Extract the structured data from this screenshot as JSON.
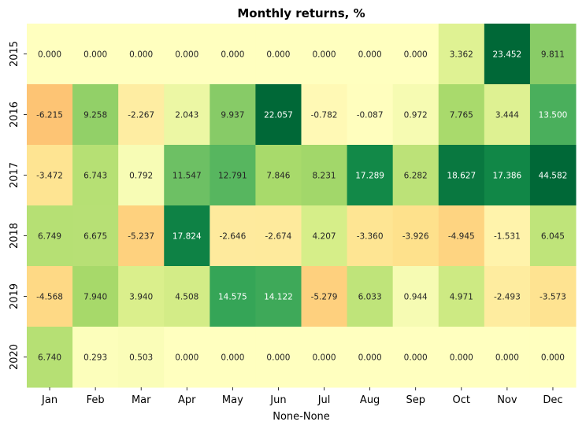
{
  "chart_data": {
    "type": "heatmap",
    "title": "Monthly returns, %",
    "xlabel": "None-None",
    "ylabel": "",
    "categories": [
      "Jan",
      "Feb",
      "Mar",
      "Apr",
      "May",
      "Jun",
      "Jul",
      "Aug",
      "Sep",
      "Oct",
      "Nov",
      "Dec"
    ],
    "rows": [
      "2015",
      "2016",
      "2017",
      "2018",
      "2019",
      "2020"
    ],
    "values": [
      [
        0.0,
        0.0,
        0.0,
        0.0,
        0.0,
        0.0,
        0.0,
        0.0,
        0.0,
        3.362,
        23.452,
        9.811
      ],
      [
        -6.215,
        9.258,
        -2.267,
        2.043,
        9.937,
        22.057,
        -0.782,
        -0.087,
        0.972,
        7.765,
        3.444,
        13.5
      ],
      [
        -3.472,
        6.743,
        0.792,
        11.547,
        12.791,
        7.846,
        8.231,
        17.289,
        6.282,
        18.627,
        17.386,
        44.582
      ],
      [
        6.749,
        6.675,
        -5.237,
        17.824,
        -2.646,
        -2.674,
        4.207,
        -3.36,
        -3.926,
        -4.945,
        -1.531,
        6.045
      ],
      [
        -4.568,
        7.94,
        3.94,
        4.508,
        14.575,
        14.122,
        -5.279,
        6.033,
        0.944,
        4.971,
        -2.493,
        -3.573
      ],
      [
        6.74,
        0.293,
        0.503,
        0.0,
        0.0,
        0.0,
        0.0,
        0.0,
        0.0,
        0.0,
        0.0,
        0.0
      ]
    ],
    "value_labels": [
      [
        "0.000",
        "0.000",
        "0.000",
        "0.000",
        "0.000",
        "0.000",
        "0.000",
        "0.000",
        "0.000",
        "3.362",
        "23.452",
        "9.811"
      ],
      [
        "-6.215",
        "9.258",
        "-2.267",
        "2.043",
        "9.937",
        "22.057",
        "-0.782",
        "-0.087",
        "0.972",
        "7.765",
        "3.444",
        "13.500"
      ],
      [
        "-3.472",
        "6.743",
        "0.792",
        "11.547",
        "12.791",
        "7.846",
        "8.231",
        "17.289",
        "6.282",
        "18.627",
        "17.386",
        "44.582"
      ],
      [
        "6.749",
        "6.675",
        "-5.237",
        "17.824",
        "-2.646",
        "-2.674",
        "4.207",
        "-3.360",
        "-3.926",
        "-4.945",
        "-1.531",
        "6.045"
      ],
      [
        "-4.568",
        "7.940",
        "3.940",
        "4.508",
        "14.575",
        "14.122",
        "-5.279",
        "6.033",
        "0.944",
        "4.971",
        "-2.493",
        "-3.573"
      ],
      [
        "6.740",
        "0.293",
        "0.503",
        "0.000",
        "0.000",
        "0.000",
        "0.000",
        "0.000",
        "0.000",
        "0.000",
        "0.000",
        "0.000"
      ]
    ],
    "colormap": "RdYlGn",
    "color_center": 0,
    "color_range": [
      -20,
      20
    ],
    "colorbar": false,
    "grid": false
  }
}
